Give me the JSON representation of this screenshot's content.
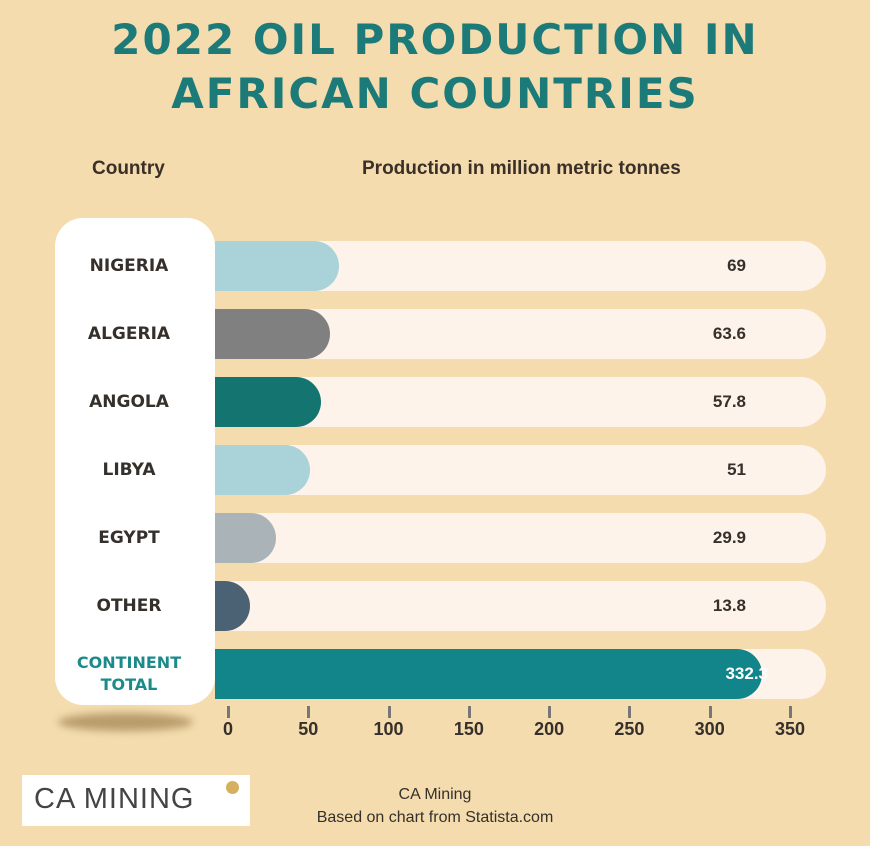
{
  "chart_data": {
    "type": "bar",
    "orientation": "horizontal",
    "title": "2022 OIL PRODUCTION IN AFRICAN COUNTRIES",
    "title_lines": [
      "2022 OIL PRODUCTION IN",
      "AFRICAN COUNTRIES"
    ],
    "xlabel": "Production in million metric tonnes",
    "ylabel": "Country",
    "categories": [
      "NIGERIA",
      "ALGERIA",
      "ANGOLA",
      "LIBYA",
      "EGYPT",
      "OTHER",
      "CONTINENT TOTAL"
    ],
    "values": [
      69,
      63.6,
      57.8,
      51,
      29.9,
      13.8,
      332.3
    ],
    "value_labels": [
      "69",
      "63.6",
      "57.8",
      "51",
      "29.9",
      "13.8",
      "332.3"
    ],
    "colors": [
      "#a9d3d8",
      "#808080",
      "#147570",
      "#a9d3d8",
      "#aab4b8",
      "#4a6274",
      "#12858a"
    ],
    "xlim": [
      0,
      350
    ],
    "xticks": [
      "0",
      "50",
      "100",
      "150",
      "200",
      "250",
      "300",
      "350"
    ],
    "grid": false
  },
  "footer": {
    "logo_text": "CA MINING",
    "line1": "CA Mining",
    "line2": "Based on chart from Statista.com"
  }
}
